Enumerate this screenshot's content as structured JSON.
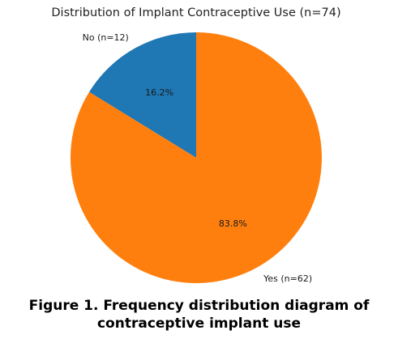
{
  "chart_data": {
    "type": "pie",
    "title": "Distribution of Implant Contraceptive Use (n=74)",
    "start_angle_deg": 90,
    "direction": "counterclockwise",
    "slices": [
      {
        "label": "No (n=12)",
        "value": 12,
        "percent_label": "16.2%",
        "color": "#1f77b4"
      },
      {
        "label": "Yes (n=62)",
        "value": 62,
        "percent_label": "83.8%",
        "color": "#ff7f0e"
      }
    ]
  },
  "caption": {
    "line1": "Figure 1. Frequency distribution diagram of",
    "line2": "contraceptive implant use"
  }
}
